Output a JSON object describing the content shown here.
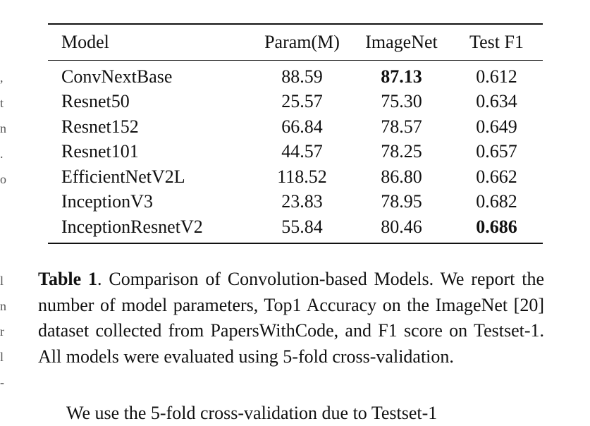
{
  "table": {
    "columns": [
      "Model",
      "Param(M)",
      "ImageNet",
      "Test F1"
    ],
    "rows": [
      {
        "model": "ConvNextBase",
        "params": "88.59",
        "imagenet": "87.13",
        "f1": "0.612"
      },
      {
        "model": "Resnet50",
        "params": "25.57",
        "imagenet": "75.30",
        "f1": "0.634"
      },
      {
        "model": "Resnet152",
        "params": "66.84",
        "imagenet": "78.57",
        "f1": "0.649"
      },
      {
        "model": "Resnet101",
        "params": "44.57",
        "imagenet": "78.25",
        "f1": "0.657"
      },
      {
        "model": "EfficientNetV2L",
        "params": "118.52",
        "imagenet": "86.80",
        "f1": "0.662"
      },
      {
        "model": "InceptionV3",
        "params": "23.83",
        "imagenet": "78.95",
        "f1": "0.682"
      },
      {
        "model": "InceptionResnetV2",
        "params": "55.84",
        "imagenet": "80.46",
        "f1": "0.686"
      }
    ]
  },
  "caption": {
    "label": "Table 1",
    "text": ". Comparison of Convolution-based Models. We report the number of model parameters, Top1 Accuracy on the ImageNet [20] dataset collected from PapersWithCode, and F1 score on Testset-1. All models were evaluated using 5-fold cross-validation."
  },
  "cutoff_line": "We use the 5-fold cross-validation due to Testset-1"
}
